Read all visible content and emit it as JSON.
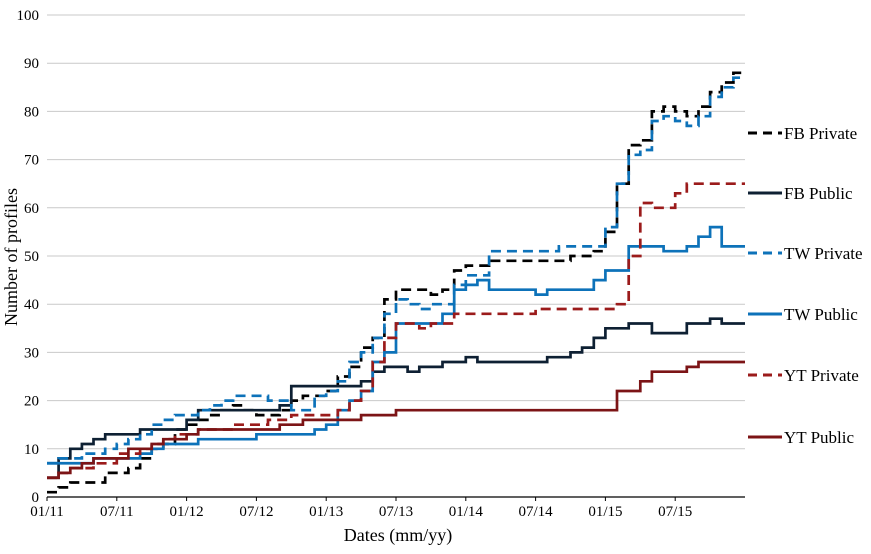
{
  "chart_data": {
    "type": "line",
    "step": true,
    "title": "",
    "xlabel": "Dates (mm/yy)",
    "ylabel": "Number of profiles",
    "ylim": [
      0,
      100
    ],
    "y_tick_step": 10,
    "grid": true,
    "legend_position": "right",
    "x_tick_labels": [
      "01/11",
      "07/11",
      "01/12",
      "07/12",
      "01/13",
      "07/13",
      "01/14",
      "07/14",
      "01/15",
      "07/15"
    ],
    "months": [
      "01/11",
      "02/11",
      "03/11",
      "04/11",
      "05/11",
      "06/11",
      "07/11",
      "08/11",
      "09/11",
      "10/11",
      "11/11",
      "12/11",
      "01/12",
      "02/12",
      "03/12",
      "04/12",
      "05/12",
      "06/12",
      "07/12",
      "08/12",
      "09/12",
      "10/12",
      "11/12",
      "12/12",
      "01/13",
      "02/13",
      "03/13",
      "04/13",
      "05/13",
      "06/13",
      "07/13",
      "08/13",
      "09/13",
      "10/13",
      "11/13",
      "12/13",
      "01/14",
      "02/14",
      "03/14",
      "04/14",
      "05/14",
      "06/14",
      "07/14",
      "08/14",
      "09/14",
      "10/14",
      "11/14",
      "12/14",
      "01/15",
      "02/15",
      "03/15",
      "04/15",
      "05/15",
      "06/15",
      "07/15",
      "08/15",
      "09/15",
      "10/15",
      "11/15",
      "12/15"
    ],
    "series": [
      {
        "name": "FB Private",
        "color": "#000000",
        "dash": true,
        "values": [
          1,
          2,
          3,
          3,
          3,
          5,
          5,
          6,
          8,
          10,
          11,
          14,
          15,
          16,
          17,
          18,
          19,
          18,
          17,
          17,
          18,
          20,
          21,
          21,
          22,
          25,
          27,
          31,
          33,
          41,
          43,
          43,
          43,
          42,
          43,
          47,
          48,
          48,
          49,
          49,
          49,
          49,
          49,
          49,
          49,
          50,
          50,
          51,
          55,
          65,
          73,
          74,
          80,
          81,
          80,
          79,
          81,
          84,
          86,
          88
        ]
      },
      {
        "name": "FB Public",
        "color": "#0e2033",
        "dash": false,
        "values": [
          4,
          8,
          10,
          11,
          12,
          13,
          13,
          13,
          14,
          14,
          14,
          14,
          16,
          18,
          18,
          18,
          18,
          18,
          18,
          18,
          19,
          23,
          23,
          23,
          23,
          23,
          23,
          24,
          26,
          27,
          27,
          26,
          27,
          27,
          28,
          28,
          29,
          28,
          28,
          28,
          28,
          28,
          28,
          29,
          29,
          30,
          31,
          33,
          35,
          35,
          36,
          36,
          34,
          34,
          34,
          36,
          36,
          37,
          36,
          36
        ]
      },
      {
        "name": "TW Private",
        "color": "#0d72b9",
        "dash": true,
        "values": [
          7,
          8,
          8,
          9,
          9,
          10,
          11,
          12,
          13,
          15,
          16,
          17,
          17,
          18,
          19,
          20,
          21,
          21,
          21,
          20,
          20,
          18,
          18,
          21,
          22,
          24,
          28,
          30,
          33,
          38,
          41,
          40,
          39,
          40,
          40,
          44,
          46,
          46,
          51,
          51,
          51,
          51,
          51,
          51,
          52,
          52,
          52,
          52,
          56,
          65,
          71,
          72,
          78,
          79,
          78,
          77,
          79,
          83,
          85,
          87
        ]
      },
      {
        "name": "TW Public",
        "color": "#0d72b9",
        "dash": false,
        "values": [
          7,
          7,
          7,
          7,
          8,
          8,
          8,
          8,
          9,
          10,
          11,
          11,
          11,
          12,
          12,
          12,
          12,
          12,
          13,
          13,
          13,
          13,
          13,
          14,
          15,
          18,
          20,
          22,
          28,
          30,
          36,
          36,
          36,
          36,
          38,
          43,
          44,
          45,
          43,
          43,
          43,
          43,
          42,
          43,
          43,
          43,
          43,
          45,
          47,
          47,
          52,
          52,
          52,
          51,
          51,
          52,
          54,
          56,
          52,
          52
        ]
      },
      {
        "name": "YT Private",
        "color": "#9b1b1b",
        "dash": true,
        "values": [
          4,
          5,
          6,
          6,
          7,
          7,
          9,
          9,
          10,
          11,
          12,
          13,
          13,
          14,
          14,
          14,
          15,
          15,
          15,
          16,
          16,
          17,
          17,
          17,
          17,
          18,
          20,
          22,
          28,
          33,
          36,
          36,
          35,
          36,
          36,
          38,
          38,
          38,
          38,
          38,
          38,
          38,
          39,
          39,
          39,
          39,
          39,
          39,
          39,
          40,
          50,
          61,
          60,
          60,
          63,
          65,
          65,
          65,
          65,
          65
        ]
      },
      {
        "name": "YT Public",
        "color": "#7c1416",
        "dash": false,
        "values": [
          4,
          5,
          6,
          7,
          8,
          8,
          8,
          10,
          10,
          11,
          12,
          12,
          13,
          14,
          14,
          14,
          14,
          14,
          14,
          14,
          15,
          15,
          16,
          16,
          16,
          16,
          16,
          17,
          17,
          17,
          18,
          18,
          18,
          18,
          18,
          18,
          18,
          18,
          18,
          18,
          18,
          18,
          18,
          18,
          18,
          18,
          18,
          18,
          18,
          22,
          22,
          24,
          26,
          26,
          26,
          27,
          28,
          28,
          28,
          28
        ]
      }
    ],
    "legend": [
      "FB Private",
      "FB Public",
      "TW Private",
      "TW Public",
      "YT Private",
      "YT Public"
    ],
    "colors": {
      "fb": "#0e2033",
      "tw": "#0d72b9",
      "yt": "#7c1416",
      "gridline": "#c9c9c9",
      "axis": "#000000"
    }
  }
}
